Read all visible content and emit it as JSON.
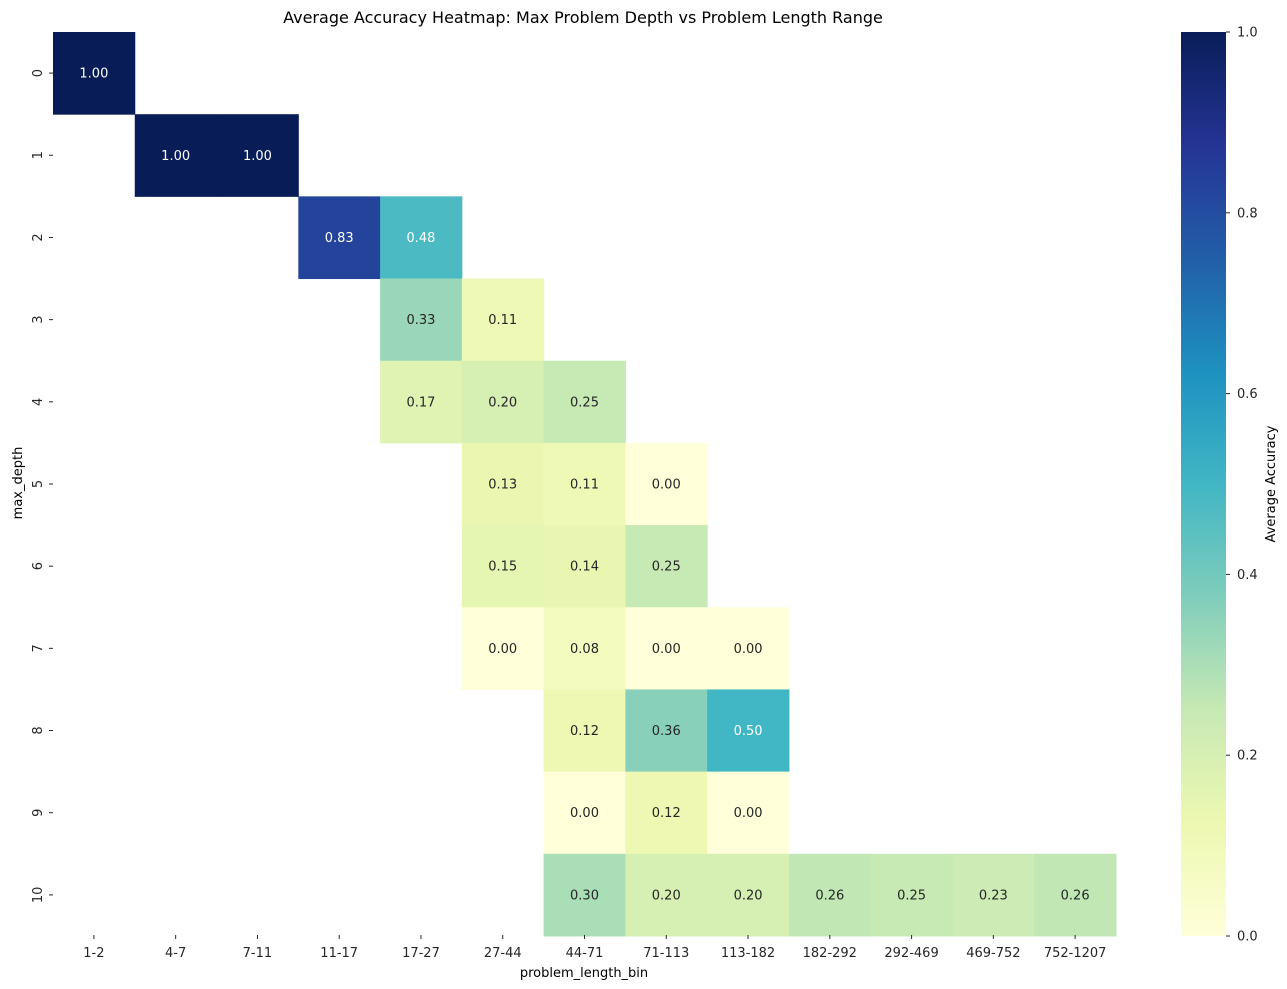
{
  "chart_data": {
    "type": "heatmap",
    "title": "Average Accuracy Heatmap: Max Problem Depth vs Problem Length Range",
    "xlabel": "problem_length_bin",
    "ylabel": "max_depth",
    "x_categories": [
      "1-2",
      "4-7",
      "7-11",
      "11-17",
      "17-27",
      "27-44",
      "44-71",
      "71-113",
      "113-182",
      "182-292",
      "292-469",
      "469-752",
      "752-1207"
    ],
    "y_categories": [
      "0",
      "1",
      "2",
      "3",
      "4",
      "5",
      "6",
      "7",
      "8",
      "9",
      "10"
    ],
    "values": [
      [
        1.0,
        null,
        null,
        null,
        null,
        null,
        null,
        null,
        null,
        null,
        null,
        null,
        null
      ],
      [
        null,
        1.0,
        1.0,
        null,
        null,
        null,
        null,
        null,
        null,
        null,
        null,
        null,
        null
      ],
      [
        null,
        null,
        null,
        0.83,
        0.48,
        null,
        null,
        null,
        null,
        null,
        null,
        null,
        null
      ],
      [
        null,
        null,
        null,
        null,
        0.33,
        0.11,
        null,
        null,
        null,
        null,
        null,
        null,
        null
      ],
      [
        null,
        null,
        null,
        null,
        0.17,
        0.2,
        0.25,
        null,
        null,
        null,
        null,
        null,
        null
      ],
      [
        null,
        null,
        null,
        null,
        null,
        0.13,
        0.11,
        0.0,
        null,
        null,
        null,
        null,
        null
      ],
      [
        null,
        null,
        null,
        null,
        null,
        0.15,
        0.14,
        0.25,
        null,
        null,
        null,
        null,
        null
      ],
      [
        null,
        null,
        null,
        null,
        null,
        0.0,
        0.08,
        0.0,
        0.0,
        null,
        null,
        null,
        null
      ],
      [
        null,
        null,
        null,
        null,
        null,
        null,
        0.12,
        0.36,
        0.5,
        null,
        null,
        null,
        null
      ],
      [
        null,
        null,
        null,
        null,
        null,
        null,
        0.0,
        0.12,
        0.0,
        null,
        null,
        null,
        null
      ],
      [
        null,
        null,
        null,
        null,
        null,
        null,
        0.3,
        0.2,
        0.2,
        0.26,
        0.25,
        0.23,
        0.26
      ]
    ],
    "colorbar": {
      "label": "Average Accuracy",
      "range": [
        0.0,
        1.0
      ],
      "ticks": [
        "0.0",
        "0.2",
        "0.4",
        "0.6",
        "0.8",
        "1.0"
      ],
      "colormap": "YlGnBu"
    },
    "grid": false
  }
}
